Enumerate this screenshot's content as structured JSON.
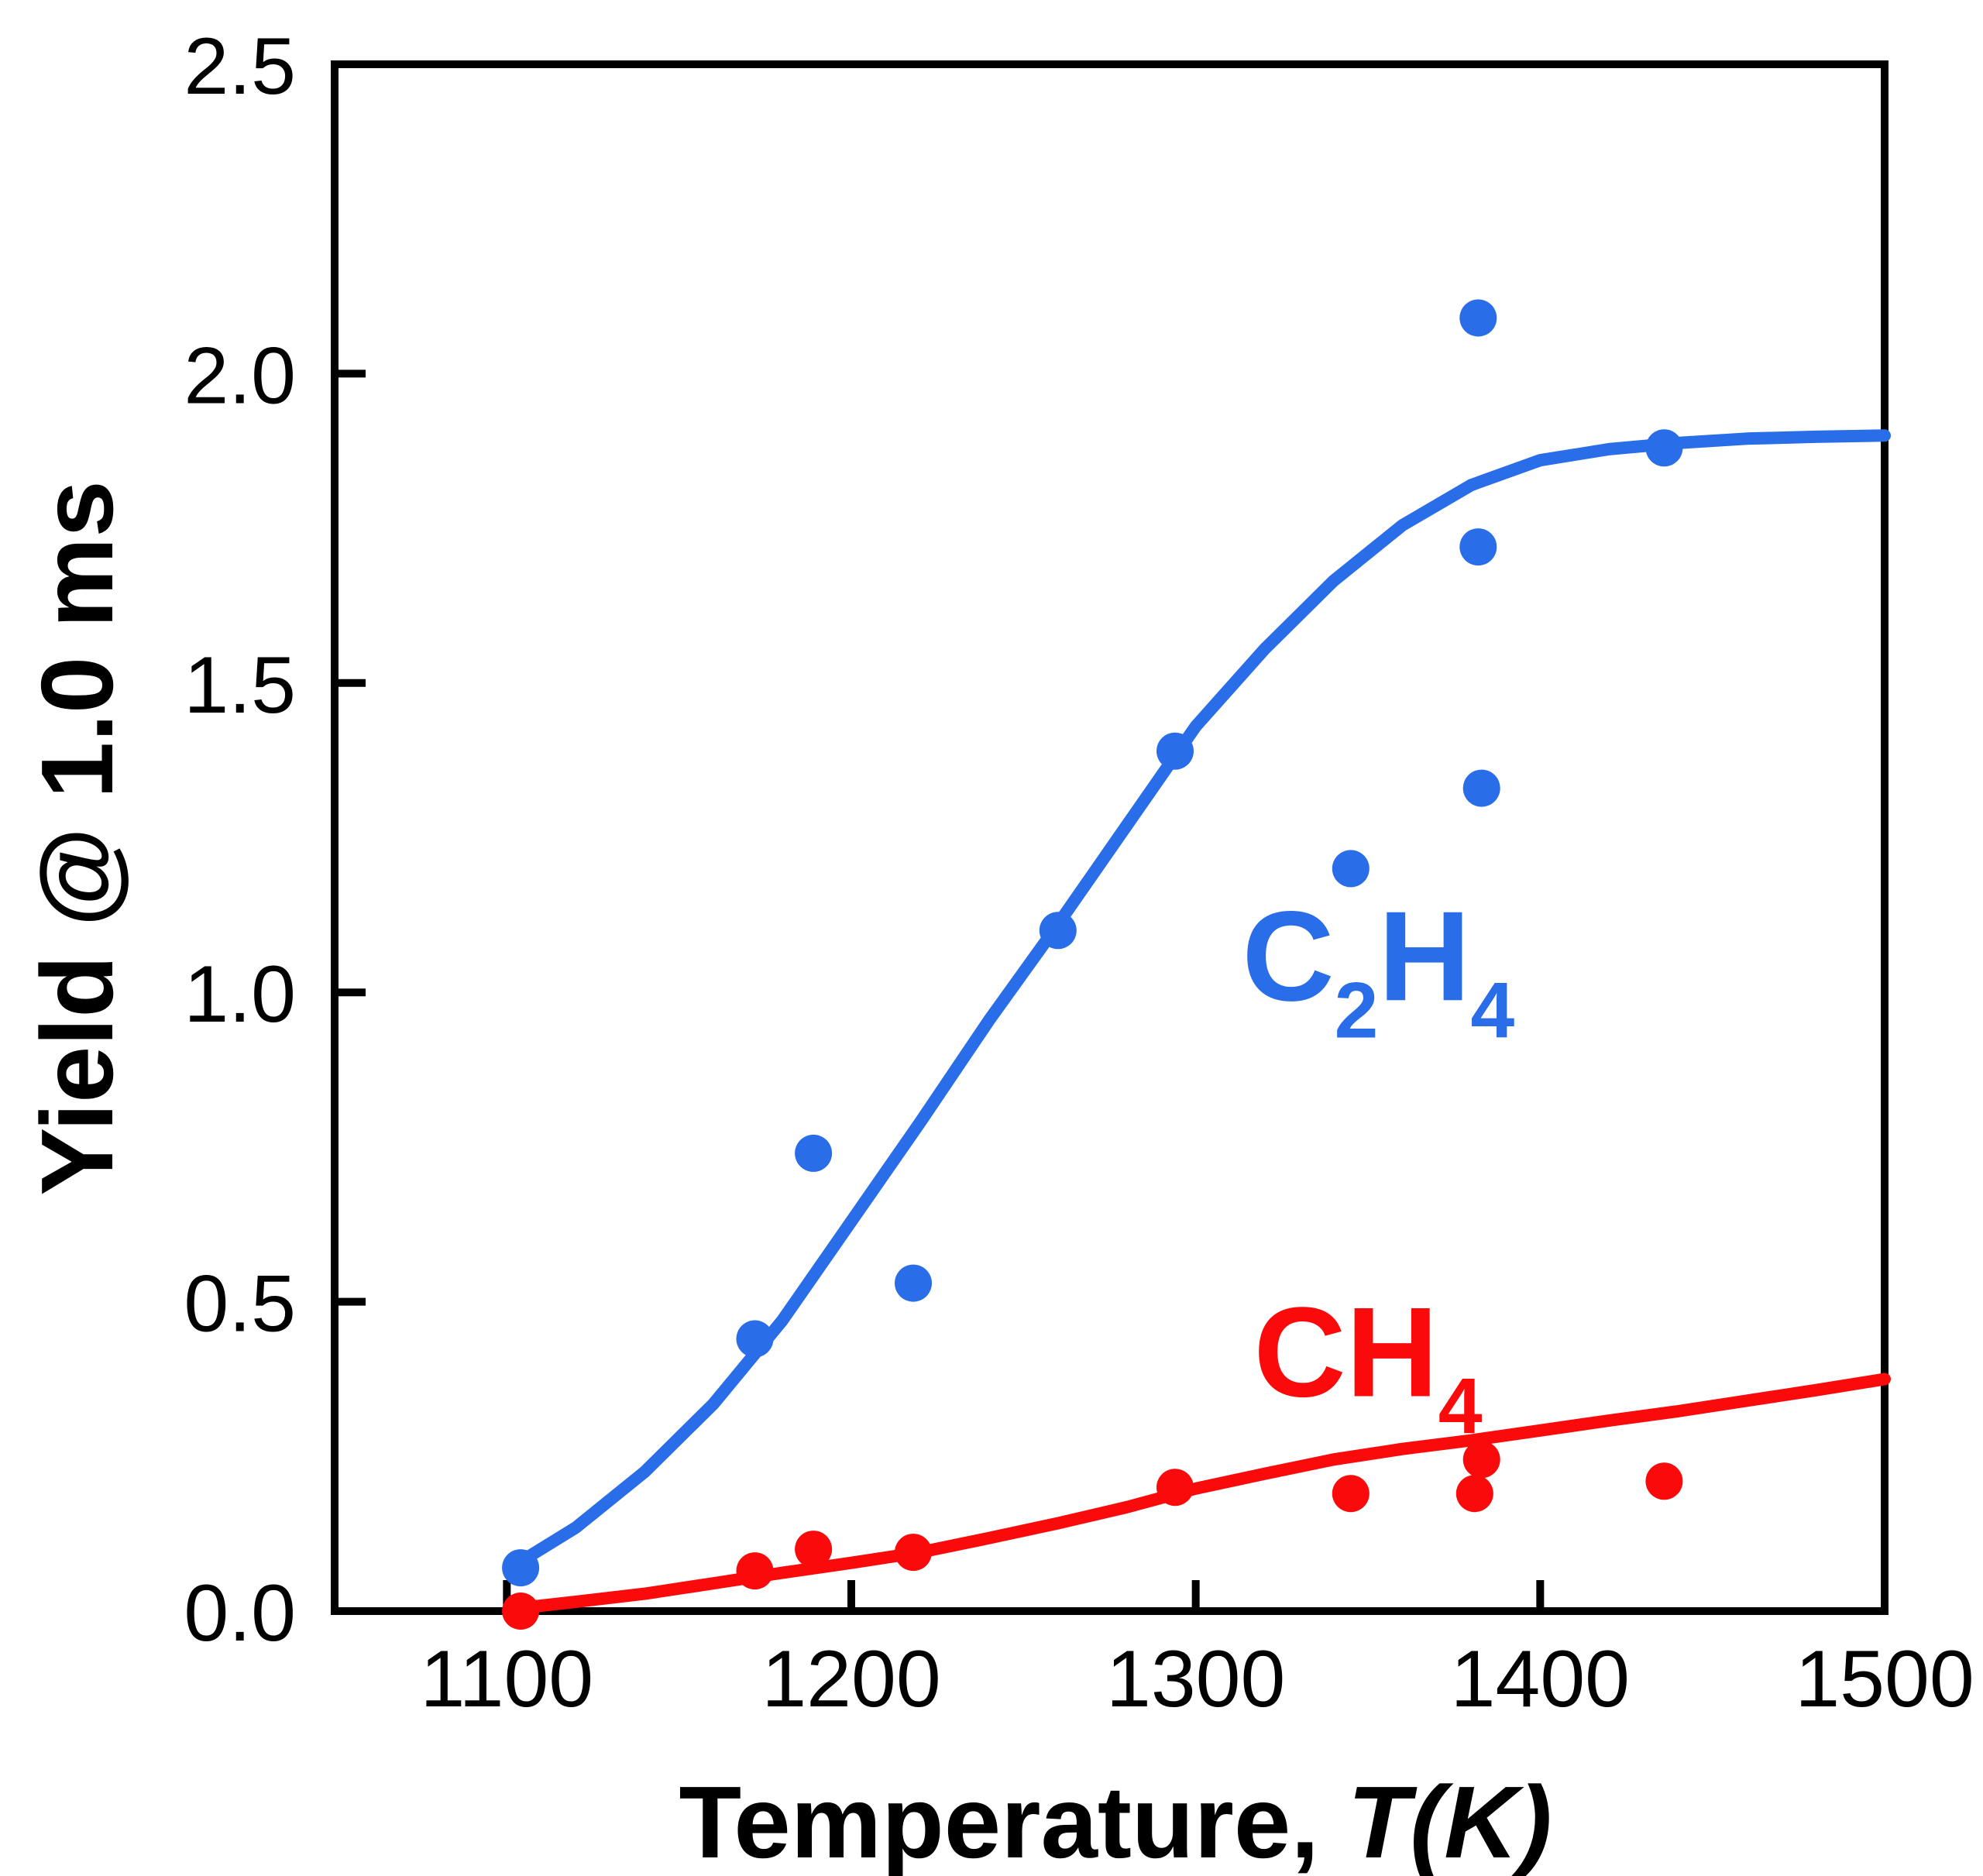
{
  "figure": {
    "background": "#ffffff",
    "axis_color": "#000000"
  },
  "chart_data": {
    "type": "scatter",
    "title": "",
    "xlabel_upright": "Temperature, ",
    "xlabel_italic": "T(K)",
    "ylabel": "Yield @ 1.0 ms",
    "xlim": [
      1050,
      1500
    ],
    "ylim": [
      0,
      2.5
    ],
    "grid": false,
    "legend_position": "inline-annotations",
    "x_ticks": {
      "values": [
        1100,
        1200,
        1300,
        1400,
        1500
      ],
      "labels": [
        "1100",
        "1200",
        "1300",
        "1400",
        "1500"
      ]
    },
    "y_ticks": {
      "values": [
        0,
        0.5,
        1.0,
        1.5,
        2.0,
        2.5
      ],
      "labels": [
        "0.0",
        "0.5",
        "1.0",
        "1.5",
        "2.0",
        "2.5"
      ]
    },
    "series": [
      {
        "id": "c2h4",
        "name": "C2H4",
        "label_parts": [
          {
            "text": "C",
            "sub": false
          },
          {
            "text": "2",
            "sub": true
          },
          {
            "text": "H",
            "sub": false
          },
          {
            "text": "4",
            "sub": true
          }
        ],
        "color": "#2a6de9",
        "label_anchor": {
          "x": 1353,
          "y": 1.06
        },
        "points": [
          [
            1104,
            0.07
          ],
          [
            1172,
            0.44
          ],
          [
            1189,
            0.74
          ],
          [
            1218,
            0.53
          ],
          [
            1260,
            1.1
          ],
          [
            1294,
            1.39
          ],
          [
            1345,
            1.2
          ],
          [
            1382,
            2.09
          ],
          [
            1382,
            1.72
          ],
          [
            1383,
            1.33
          ],
          [
            1436,
            1.88
          ]
        ],
        "fit_curve": [
          [
            1104,
            0.08
          ],
          [
            1120,
            0.135
          ],
          [
            1140,
            0.225
          ],
          [
            1160,
            0.335
          ],
          [
            1180,
            0.47
          ],
          [
            1200,
            0.63
          ],
          [
            1220,
            0.79
          ],
          [
            1240,
            0.955
          ],
          [
            1260,
            1.11
          ],
          [
            1280,
            1.27
          ],
          [
            1300,
            1.43
          ],
          [
            1320,
            1.555
          ],
          [
            1340,
            1.665
          ],
          [
            1360,
            1.755
          ],
          [
            1380,
            1.82
          ],
          [
            1400,
            1.86
          ],
          [
            1420,
            1.878
          ],
          [
            1440,
            1.888
          ],
          [
            1460,
            1.895
          ],
          [
            1480,
            1.898
          ],
          [
            1500,
            1.9
          ]
        ]
      },
      {
        "id": "ch4",
        "name": "CH4",
        "label_parts": [
          {
            "text": "C",
            "sub": false
          },
          {
            "text": "H",
            "sub": false
          },
          {
            "text": "4",
            "sub": true
          }
        ],
        "color": "#fa0a0a",
        "label_anchor": {
          "x": 1350,
          "y": 0.42
        },
        "points": [
          [
            1104,
            0.0
          ],
          [
            1172,
            0.065
          ],
          [
            1189,
            0.1
          ],
          [
            1218,
            0.095
          ],
          [
            1294,
            0.2
          ],
          [
            1345,
            0.19
          ],
          [
            1381,
            0.19
          ],
          [
            1383,
            0.245
          ],
          [
            1436,
            0.21
          ]
        ],
        "fit_curve": [
          [
            1104,
            0.005
          ],
          [
            1120,
            0.015
          ],
          [
            1140,
            0.028
          ],
          [
            1160,
            0.045
          ],
          [
            1180,
            0.062
          ],
          [
            1200,
            0.078
          ],
          [
            1220,
            0.095
          ],
          [
            1240,
            0.118
          ],
          [
            1260,
            0.142
          ],
          [
            1280,
            0.168
          ],
          [
            1300,
            0.198
          ],
          [
            1320,
            0.222
          ],
          [
            1340,
            0.245
          ],
          [
            1360,
            0.262
          ],
          [
            1380,
            0.276
          ],
          [
            1400,
            0.292
          ],
          [
            1420,
            0.308
          ],
          [
            1440,
            0.323
          ],
          [
            1460,
            0.34
          ],
          [
            1480,
            0.357
          ],
          [
            1500,
            0.375
          ]
        ]
      }
    ]
  }
}
